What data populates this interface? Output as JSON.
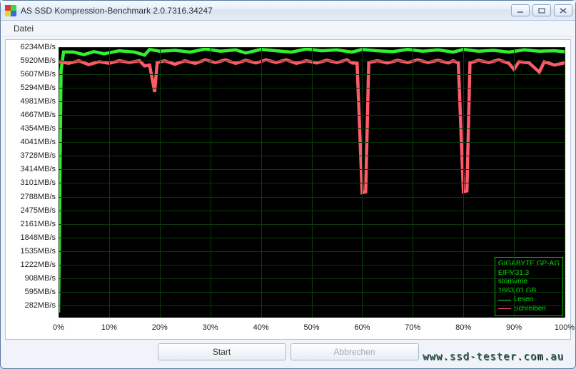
{
  "window": {
    "title": "AS SSD Kompression-Benchmark 2.0.7316.34247",
    "icon_colors": [
      "#d93a3a",
      "#3ad93a",
      "#d9d93a",
      "#3a6ad9"
    ]
  },
  "menu": {
    "items": [
      "Datei"
    ]
  },
  "chart": {
    "type": "line",
    "background_color": "#000000",
    "grid_color": "#0a3a0a",
    "axis_label_color": "#222222",
    "axis_fontsize": 11,
    "x": {
      "unit": "%",
      "min": 0,
      "max": 100,
      "ticks": [
        0,
        10,
        20,
        30,
        40,
        50,
        60,
        70,
        80,
        90,
        100
      ],
      "labels": [
        "0%",
        "10%",
        "20%",
        "30%",
        "40%",
        "50%",
        "60%",
        "70%",
        "80%",
        "90%",
        "100%"
      ]
    },
    "y": {
      "unit": "MB/s",
      "min": 0,
      "max": 6234,
      "ticks": [
        282,
        595,
        908,
        1222,
        1535,
        1848,
        2161,
        2475,
        2788,
        3101,
        3414,
        3728,
        4041,
        4354,
        4667,
        4981,
        5294,
        5607,
        5920,
        6234
      ],
      "labels": [
        "282MB/s",
        "595MB/s",
        "908MB/s",
        "1222MB/s",
        "1535MB/s",
        "1848MB/s",
        "2161MB/s",
        "2475MB/s",
        "2788MB/s",
        "3101MB/s",
        "3414MB/s",
        "3728MB/s",
        "4041MB/s",
        "4354MB/s",
        "4667MB/s",
        "4981MB/s",
        "5294MB/s",
        "5607MB/s",
        "5920MB/s",
        "6234MB/s"
      ]
    },
    "series": [
      {
        "name": "Lesen",
        "color": "#30f030",
        "line_width": 1.5,
        "points": [
          [
            0,
            120
          ],
          [
            0.5,
            5700
          ],
          [
            1,
            6120
          ],
          [
            3,
            6120
          ],
          [
            5,
            6060
          ],
          [
            7,
            6130
          ],
          [
            9,
            6080
          ],
          [
            12,
            6150
          ],
          [
            15,
            6120
          ],
          [
            17,
            6050
          ],
          [
            18,
            6180
          ],
          [
            20,
            6140
          ],
          [
            23,
            6160
          ],
          [
            26,
            6120
          ],
          [
            29,
            6190
          ],
          [
            32,
            6140
          ],
          [
            35,
            6170
          ],
          [
            37,
            6100
          ],
          [
            40,
            6180
          ],
          [
            43,
            6150
          ],
          [
            46,
            6120
          ],
          [
            49,
            6190
          ],
          [
            52,
            6150
          ],
          [
            55,
            6170
          ],
          [
            58,
            6120
          ],
          [
            60,
            6180
          ],
          [
            63,
            6150
          ],
          [
            66,
            6130
          ],
          [
            69,
            6180
          ],
          [
            72,
            6140
          ],
          [
            75,
            6170
          ],
          [
            78,
            6120
          ],
          [
            80,
            6180
          ],
          [
            83,
            6140
          ],
          [
            86,
            6160
          ],
          [
            89,
            6120
          ],
          [
            92,
            6170
          ],
          [
            95,
            6140
          ],
          [
            98,
            6150
          ],
          [
            100,
            6130
          ]
        ]
      },
      {
        "name": "Schreiben",
        "color": "#ff5a6a",
        "line_width": 1.5,
        "points": [
          [
            0,
            5900
          ],
          [
            2,
            5860
          ],
          [
            4,
            5920
          ],
          [
            6,
            5830
          ],
          [
            8,
            5900
          ],
          [
            10,
            5860
          ],
          [
            12,
            5920
          ],
          [
            14,
            5880
          ],
          [
            16,
            5920
          ],
          [
            17,
            5800
          ],
          [
            18,
            5820
          ],
          [
            19,
            5200
          ],
          [
            19.5,
            5880
          ],
          [
            21,
            5920
          ],
          [
            23,
            5840
          ],
          [
            25,
            5920
          ],
          [
            27,
            5860
          ],
          [
            29,
            5940
          ],
          [
            31,
            5880
          ],
          [
            33,
            5940
          ],
          [
            35,
            5860
          ],
          [
            37,
            5930
          ],
          [
            39,
            5870
          ],
          [
            41,
            5940
          ],
          [
            43,
            5880
          ],
          [
            45,
            5940
          ],
          [
            47,
            5860
          ],
          [
            49,
            5920
          ],
          [
            51,
            5870
          ],
          [
            53,
            5930
          ],
          [
            55,
            5880
          ],
          [
            57,
            5940
          ],
          [
            58,
            5870
          ],
          [
            59,
            5860
          ],
          [
            60,
            2880
          ],
          [
            60.7,
            2900
          ],
          [
            61.3,
            5880
          ],
          [
            63,
            5920
          ],
          [
            65,
            5870
          ],
          [
            67,
            5930
          ],
          [
            69,
            5880
          ],
          [
            71,
            5940
          ],
          [
            73,
            5880
          ],
          [
            75,
            5930
          ],
          [
            77,
            5870
          ],
          [
            78,
            5920
          ],
          [
            79,
            5870
          ],
          [
            80,
            2900
          ],
          [
            80.7,
            2920
          ],
          [
            81.3,
            5870
          ],
          [
            83,
            5930
          ],
          [
            85,
            5880
          ],
          [
            87,
            5940
          ],
          [
            89,
            5860
          ],
          [
            90,
            5720
          ],
          [
            91,
            5900
          ],
          [
            93,
            5870
          ],
          [
            95,
            5660
          ],
          [
            96,
            5900
          ],
          [
            98,
            5820
          ],
          [
            100,
            5870
          ]
        ]
      }
    ],
    "legend": {
      "border_color": "#00c000",
      "text_color": "#00e000",
      "fontsize": 10,
      "lines": [
        "GIGABYTE GP-AG",
        "EIFM31.3",
        "stornvme",
        "1863,01 GB"
      ],
      "entries": [
        {
          "color": "#30f030",
          "label": "Lesen"
        },
        {
          "color": "#ff5a6a",
          "label": "Schreiben"
        }
      ]
    }
  },
  "buttons": {
    "start": "Start",
    "cancel": "Abbrechen"
  },
  "watermark": "www.ssd-tester.com.au"
}
